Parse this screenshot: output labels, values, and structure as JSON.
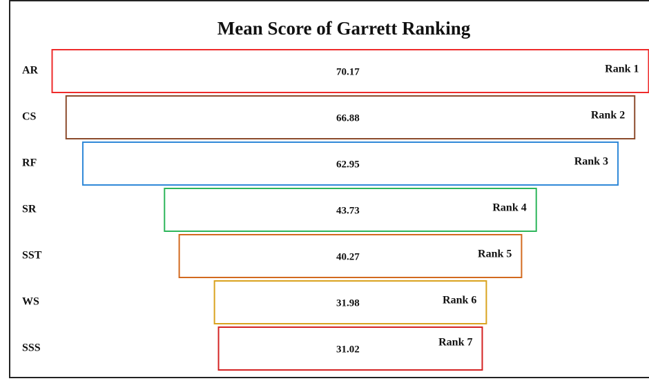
{
  "chart_data": {
    "type": "funnel",
    "title": "Mean Score of Garrett Ranking",
    "categories": [
      "AR",
      "CS",
      "RF",
      "SR",
      "SST",
      "WS",
      "SSS"
    ],
    "values": [
      70.17,
      66.88,
      62.95,
      43.73,
      40.27,
      31.98,
      31.02
    ],
    "rank_labels": [
      "Rank 1",
      "Rank 2",
      "Rank 3",
      "Rank 4",
      "Rank 5",
      "Rank 6",
      "Rank 7"
    ],
    "colors": [
      "#ee2a2a",
      "#8b4a2b",
      "#2f88d8",
      "#2cb55a",
      "#d2691e",
      "#d9a21e",
      "#d42222"
    ]
  }
}
